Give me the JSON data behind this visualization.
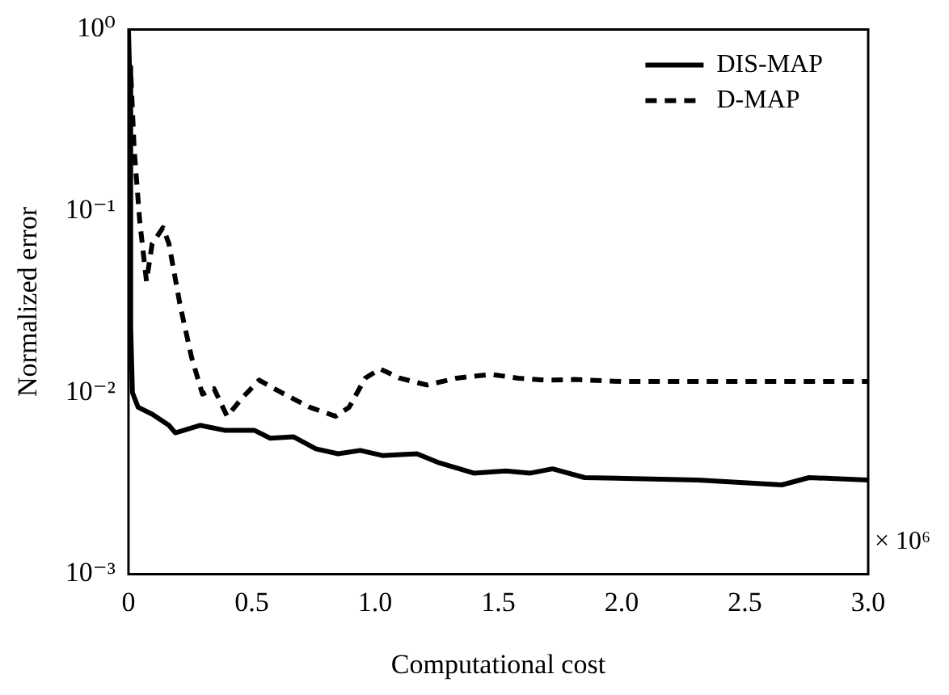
{
  "chart_data": {
    "type": "line",
    "xlabel": "Computational cost",
    "ylabel": "Normalized error",
    "log": "y",
    "xlim": [
      0,
      3
    ],
    "xticks": [
      0,
      0.5,
      {
        "value": 1,
        "label": "1.0"
      },
      1.5,
      {
        "value": 2,
        "label": "2.0"
      },
      2.5,
      {
        "value": 3,
        "label": "3.0"
      }
    ],
    "ylim": [
      0.001,
      1
    ],
    "yticks": [
      {
        "value": 0.001,
        "label": "10⁻³"
      },
      {
        "value": 0.01,
        "label": "10⁻²"
      },
      {
        "value": 0.1,
        "label": "10⁻¹"
      },
      {
        "value": 1,
        "label": "10⁰"
      }
    ],
    "grid": false,
    "legend": "top right",
    "marker": "none",
    "annotations": [
      "× 10⁶"
    ],
    "series": [
      {
        "name": "DIS-MAP",
        "color": "#000000",
        "line_style": "solid",
        "x": [
          0,
          0.004,
          0.009,
          0.016,
          0.039,
          0.096,
          0.164,
          0.19,
          0.29,
          0.39,
          0.51,
          0.575,
          0.67,
          0.76,
          0.85,
          0.94,
          1.03,
          1.17,
          1.26,
          1.4,
          1.53,
          1.63,
          1.72,
          1.85,
          2.31,
          2.65,
          2.76,
          3.0
        ],
        "values": [
          1,
          0.62,
          0.023,
          0.01,
          0.0083,
          0.0076,
          0.0066,
          0.006,
          0.0066,
          0.0062,
          0.0062,
          0.0056,
          0.0057,
          0.0049,
          0.0046,
          0.0048,
          0.0045,
          0.0046,
          0.0041,
          0.0036,
          0.0037,
          0.0036,
          0.0038,
          0.0034,
          0.0033,
          0.0031,
          0.0034,
          0.0033
        ]
      },
      {
        "name": "D-MAP",
        "color": "#000000",
        "line_style": "dashed",
        "x": [
          0.01,
          0.023,
          0.046,
          0.073,
          0.096,
          0.14,
          0.164,
          0.21,
          0.256,
          0.3,
          0.347,
          0.4,
          0.46,
          0.53,
          0.62,
          0.735,
          0.84,
          0.895,
          0.96,
          1.02,
          1.1,
          1.21,
          1.33,
          1.47,
          1.58,
          1.69,
          1.81,
          2.0,
          2.5,
          3.0
        ],
        "values": [
          0.55,
          0.22,
          0.087,
          0.041,
          0.066,
          0.081,
          0.066,
          0.03,
          0.0156,
          0.0098,
          0.0105,
          0.0074,
          0.0093,
          0.0117,
          0.01,
          0.0083,
          0.0074,
          0.0083,
          0.012,
          0.0135,
          0.012,
          0.011,
          0.012,
          0.0126,
          0.012,
          0.0117,
          0.0118,
          0.0115,
          0.0115,
          0.0115
        ]
      }
    ]
  }
}
